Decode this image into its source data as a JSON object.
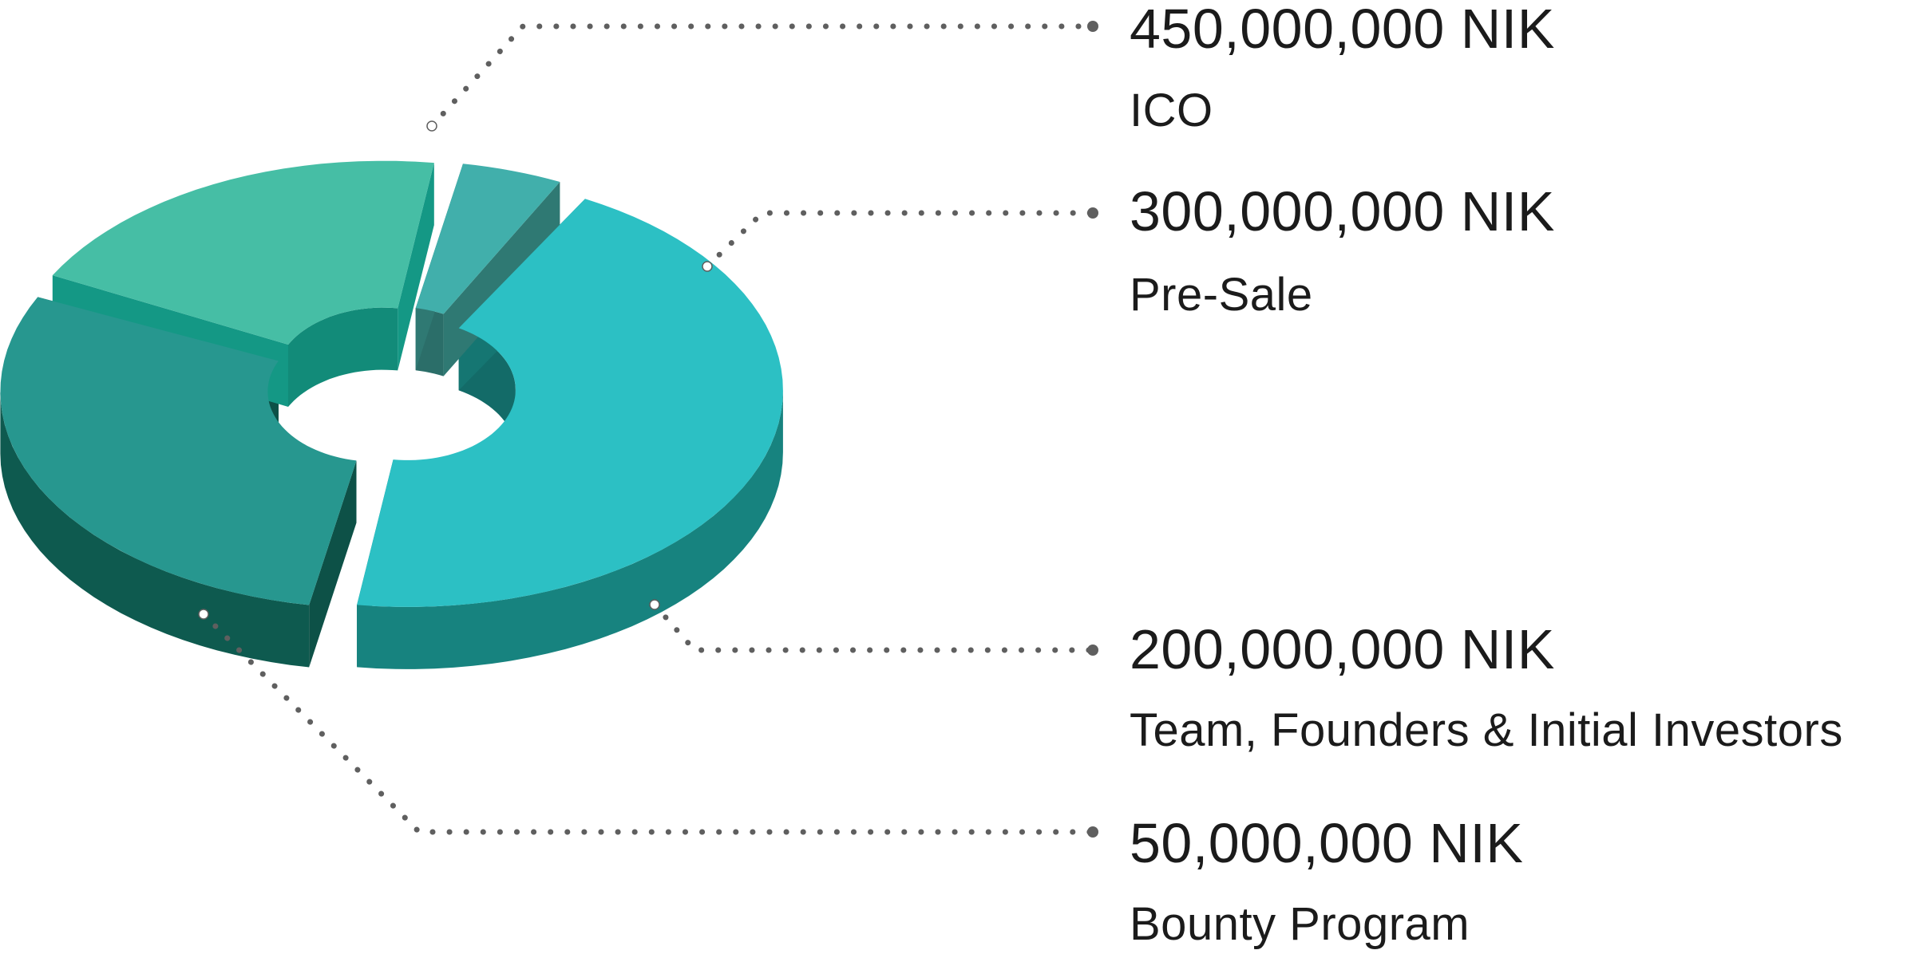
{
  "chart_data": {
    "type": "pie",
    "style": "3d-donut",
    "unit": "NIK",
    "slices": [
      {
        "label": "ICO",
        "value": 450000000,
        "display_value": "450,000,000 NIK",
        "color": "#2CC0C4",
        "side_color": "#17837F"
      },
      {
        "label": "Pre-Sale",
        "value": 300000000,
        "display_value": "300,000,000 NIK",
        "color": "#27978F",
        "side_color": "#0E5A4F"
      },
      {
        "label": "Team, Founders & Initial Investors",
        "value": 200000000,
        "display_value": "200,000,000 NIK",
        "color": "#46BEA5",
        "side_color": "#16A994"
      },
      {
        "label": "Bounty Program",
        "value": 50000000,
        "display_value": "50,000,000 NIK",
        "color": "#41AFAB",
        "side_color": "#348680"
      }
    ]
  }
}
